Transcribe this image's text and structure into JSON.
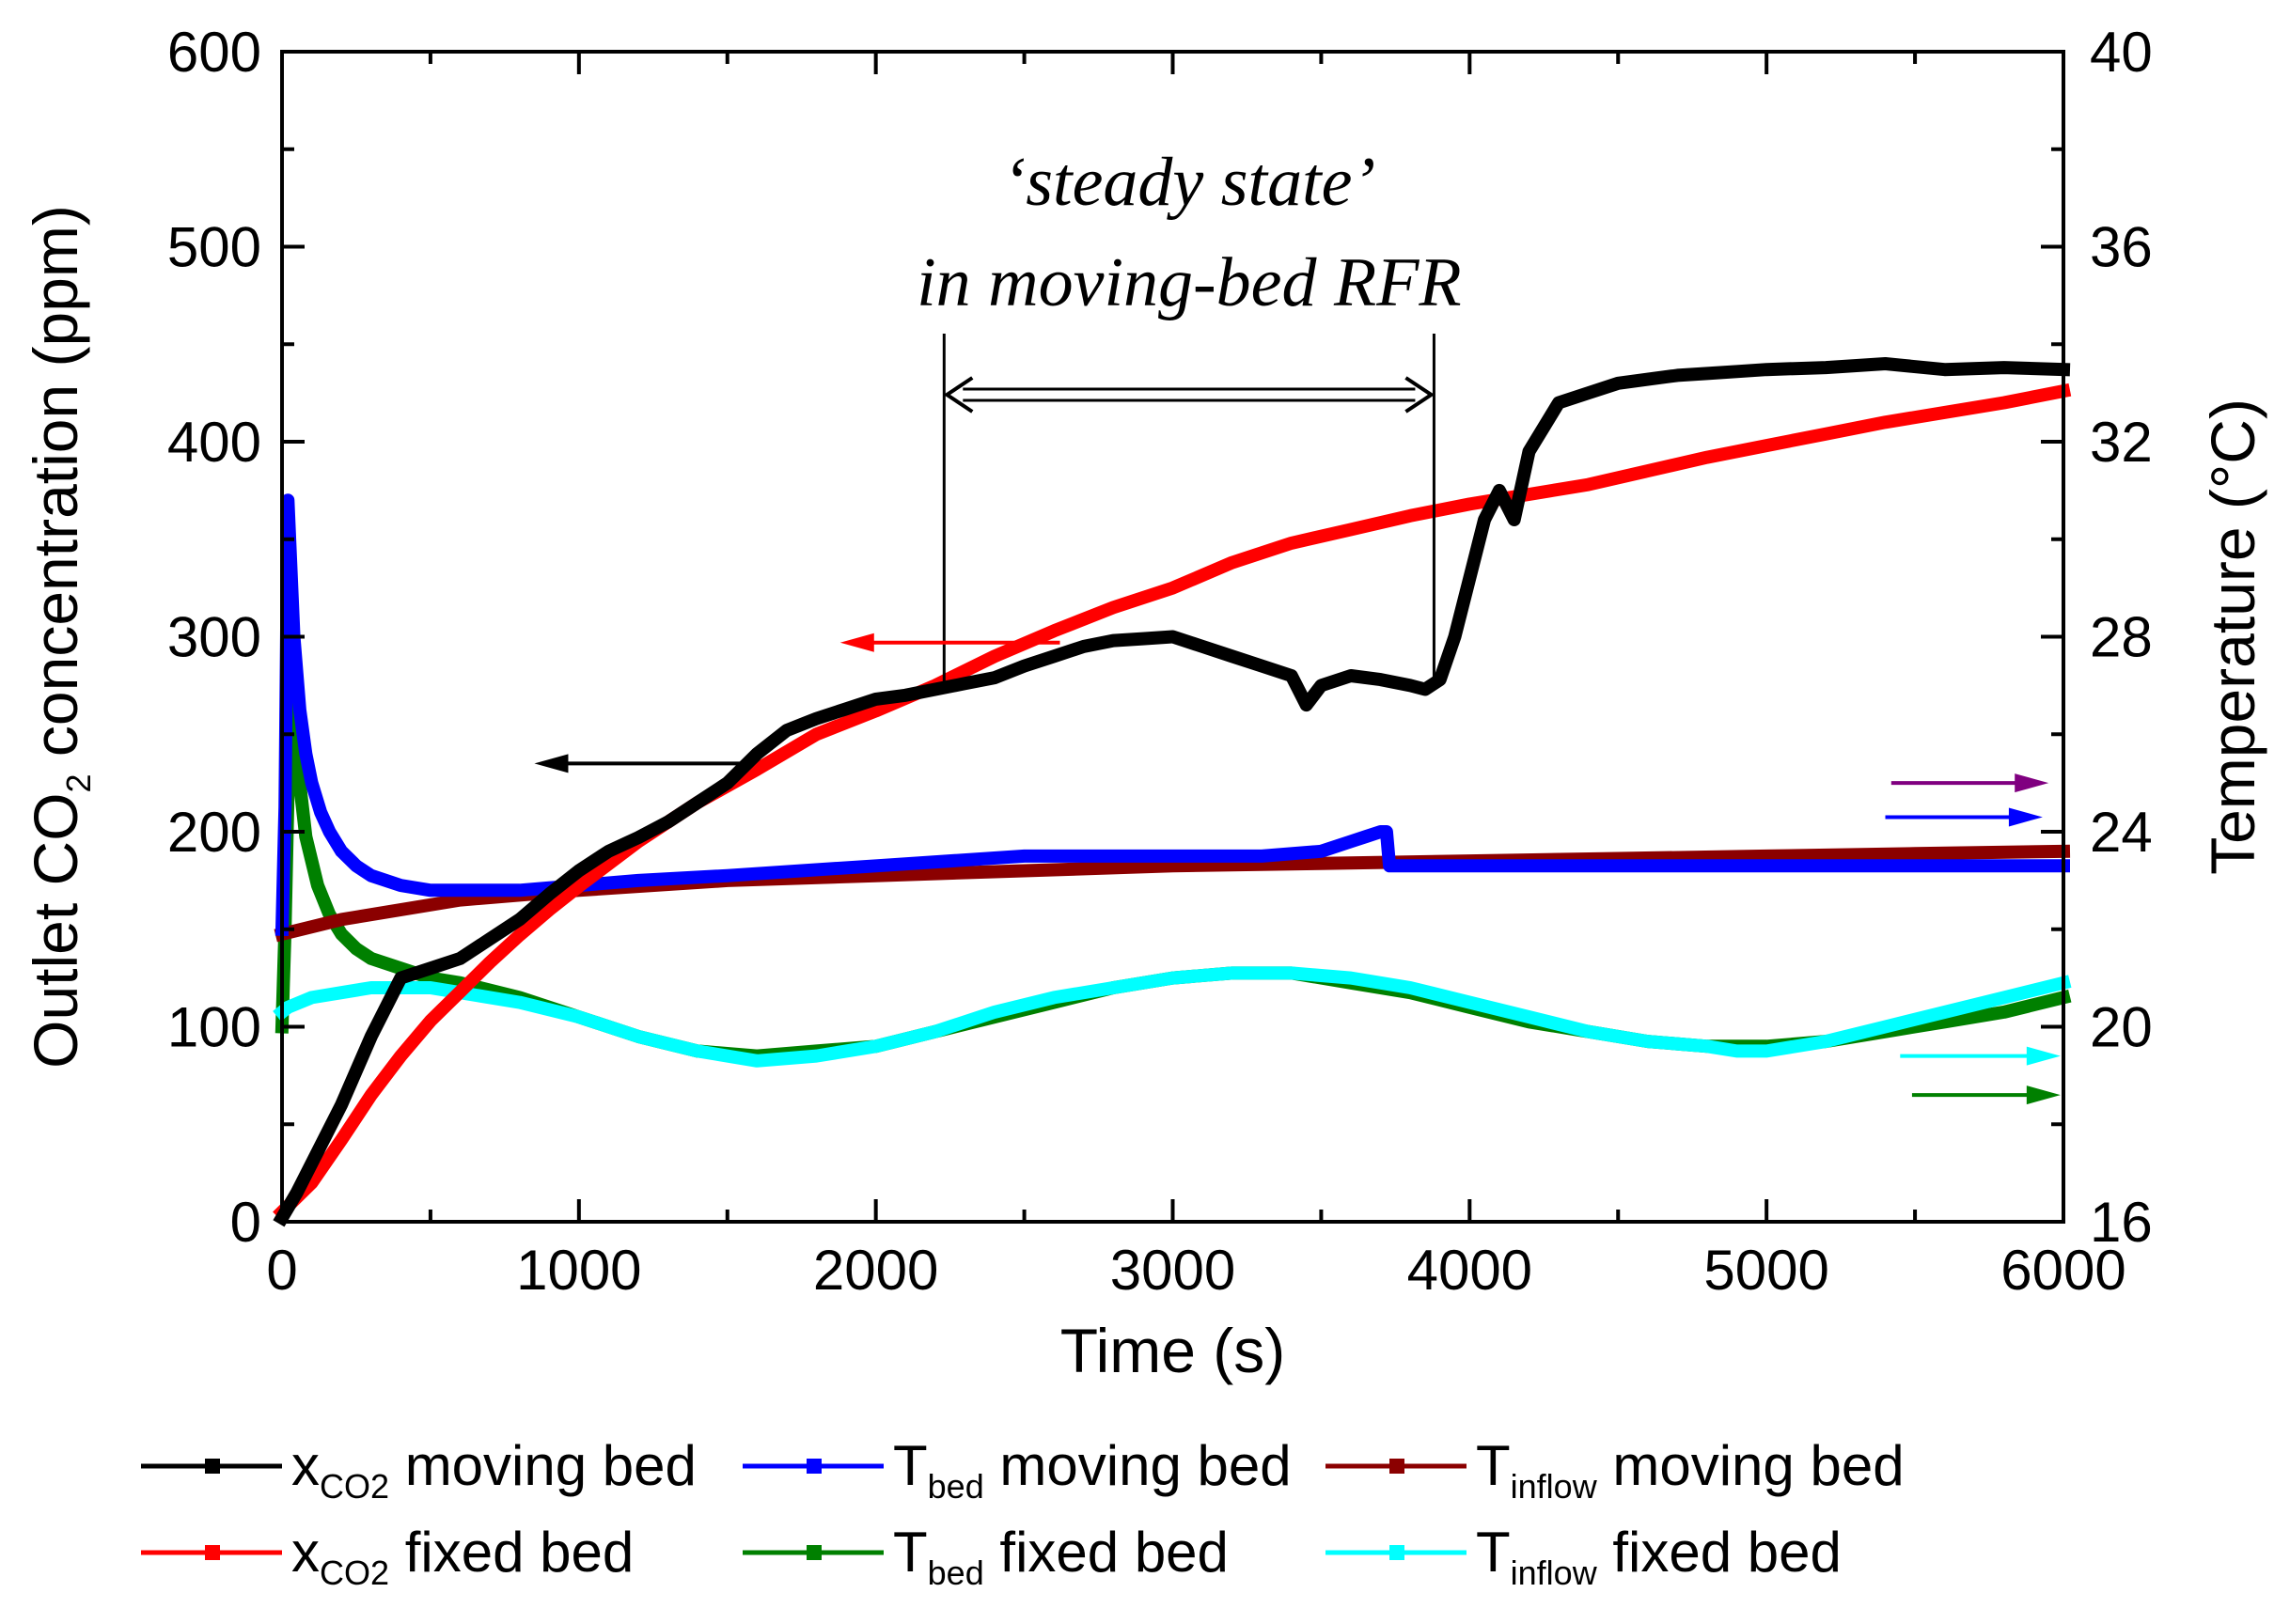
{
  "chart_data": {
    "type": "line",
    "title": "",
    "xlabel": "Time (s)",
    "ylabel_left": {
      "pre": "Outlet CO",
      "sub": "2",
      "post": " concentration (ppm)"
    },
    "ylabel_right": "Temperature (°C)",
    "xlim": [
      0,
      6000
    ],
    "ylim_left": [
      0,
      600
    ],
    "ylim_right": [
      16,
      40
    ],
    "x_ticks": [
      0,
      1000,
      2000,
      3000,
      4000,
      5000,
      6000
    ],
    "y_left_ticks": [
      0,
      100,
      200,
      300,
      400,
      500,
      600
    ],
    "y_right_ticks": [
      16,
      20,
      24,
      28,
      32,
      36,
      40
    ],
    "grid": false,
    "legend_placement": "bottom",
    "annotation": {
      "line1": "‘steady state’",
      "line2": "in moving-bed RFR",
      "x_start": 2230,
      "x_end": 3880
    },
    "axis_arrows": [
      {
        "series": "x_CO2 moving bed",
        "axis": "left",
        "x": [
          1550,
          850
        ],
        "y": 235,
        "color": "#000000"
      },
      {
        "series": "x_CO2 fixed bed",
        "axis": "left",
        "x": [
          2620,
          1880
        ],
        "y": 297,
        "color": "#ff0000"
      },
      {
        "series": "T_inflow moving bed",
        "axis": "right",
        "x": [
          5420,
          5950
        ],
        "y": 25.0,
        "color": "#800080"
      },
      {
        "series": "T_bed moving bed",
        "axis": "right",
        "x": [
          5400,
          5930
        ],
        "y": 24.3,
        "color": "#0000ff"
      },
      {
        "series": "T_inflow fixed bed",
        "axis": "right",
        "x": [
          5450,
          5990
        ],
        "y": 19.4,
        "color": "#00ffff"
      },
      {
        "series": "T_bed fixed bed",
        "axis": "right",
        "x": [
          5490,
          5990
        ],
        "y": 18.6,
        "color": "#008000"
      }
    ],
    "series": [
      {
        "name": "moving bed",
        "legend_main": "x",
        "legend_sub": "CO2",
        "axis": "left",
        "color": "#000000",
        "x": [
          0,
          50,
          100,
          200,
          300,
          400,
          500,
          600,
          700,
          800,
          900,
          1000,
          1100,
          1200,
          1300,
          1400,
          1500,
          1600,
          1700,
          1800,
          1900,
          2000,
          2100,
          2200,
          2300,
          2400,
          2500,
          2600,
          2700,
          2800,
          2900,
          3000,
          3100,
          3200,
          3300,
          3400,
          3450,
          3500,
          3600,
          3700,
          3800,
          3850,
          3900,
          3950,
          4000,
          4050,
          4100,
          4150,
          4200,
          4300,
          4400,
          4500,
          4600,
          4700,
          4800,
          4900,
          5000,
          5200,
          5400,
          5600,
          5800,
          6000
        ],
        "y": [
          2,
          15,
          30,
          60,
          95,
          125,
          130,
          135,
          145,
          155,
          168,
          180,
          190,
          197,
          205,
          215,
          225,
          240,
          252,
          258,
          263,
          268,
          270,
          273,
          276,
          279,
          285,
          290,
          295,
          298,
          299,
          300,
          295,
          290,
          285,
          280,
          265,
          275,
          280,
          278,
          275,
          273,
          278,
          300,
          330,
          360,
          375,
          360,
          395,
          420,
          425,
          430,
          432,
          434,
          435,
          436,
          437,
          438,
          440,
          437,
          438,
          437
        ]
      },
      {
        "name": "fixed bed",
        "legend_main": "x",
        "legend_sub": "CO2",
        "axis": "left",
        "color": "#ff0000",
        "x": [
          0,
          100,
          200,
          300,
          400,
          500,
          600,
          700,
          800,
          900,
          1000,
          1200,
          1400,
          1600,
          1800,
          2000,
          2200,
          2400,
          2600,
          2800,
          3000,
          3200,
          3400,
          3600,
          3800,
          4000,
          4200,
          4400,
          4600,
          4800,
          5000,
          5200,
          5400,
          5600,
          5800,
          6000
        ],
        "y": [
          5,
          20,
          42,
          65,
          85,
          103,
          118,
          133,
          147,
          160,
          172,
          195,
          215,
          232,
          250,
          262,
          275,
          290,
          303,
          315,
          325,
          338,
          348,
          355,
          362,
          368,
          373,
          378,
          385,
          392,
          398,
          404,
          410,
          415,
          420,
          426
        ]
      },
      {
        "name": "moving bed",
        "legend_main": "T",
        "legend_sub": "bed",
        "axis": "right",
        "color": "#0000ff",
        "x": [
          0,
          10,
          20,
          40,
          60,
          80,
          100,
          130,
          160,
          200,
          250,
          300,
          400,
          500,
          600,
          800,
          1000,
          1200,
          1500,
          2000,
          2500,
          3000,
          3300,
          3500,
          3600,
          3650,
          3700,
          3720,
          3730,
          3800,
          4000,
          4500,
          5000,
          5500,
          6000
        ],
        "y": [
          22.0,
          24.5,
          30.8,
          28.0,
          26.5,
          25.6,
          25.0,
          24.4,
          24.0,
          23.6,
          23.3,
          23.1,
          22.9,
          22.8,
          22.8,
          22.8,
          22.9,
          23.0,
          23.1,
          23.3,
          23.5,
          23.5,
          23.5,
          23.6,
          23.8,
          23.9,
          24.0,
          24.0,
          23.3,
          23.3,
          23.3,
          23.3,
          23.3,
          23.3,
          23.3
        ]
      },
      {
        "name": "moving bed",
        "legend_main": "T",
        "legend_sub": "inflow",
        "axis": "right",
        "color": "#8b0000",
        "x": [
          0,
          200,
          400,
          600,
          800,
          1000,
          1500,
          2000,
          2500,
          3000,
          3500,
          4000,
          4500,
          5000,
          5500,
          6000
        ],
        "y": [
          21.9,
          22.2,
          22.4,
          22.6,
          22.7,
          22.8,
          23.0,
          23.1,
          23.2,
          23.3,
          23.35,
          23.4,
          23.45,
          23.5,
          23.55,
          23.6
        ]
      },
      {
        "name": "fixed bed",
        "legend_main": "T",
        "legend_sub": "bed",
        "axis": "right",
        "color": "#008000",
        "x": [
          0,
          10,
          30,
          50,
          80,
          120,
          160,
          200,
          250,
          300,
          400,
          500,
          600,
          800,
          1000,
          1200,
          1400,
          1600,
          1800,
          2000,
          2200,
          2400,
          2600,
          2800,
          3000,
          3200,
          3400,
          3600,
          3800,
          4000,
          4200,
          4400,
          4600,
          4800,
          5000,
          5200,
          5400,
          5600,
          5800,
          6000
        ],
        "y": [
          20.0,
          22.0,
          27.6,
          25.5,
          23.9,
          22.9,
          22.3,
          21.9,
          21.6,
          21.4,
          21.2,
          21.0,
          20.9,
          20.6,
          20.2,
          19.8,
          19.5,
          19.4,
          19.5,
          19.6,
          19.9,
          20.2,
          20.5,
          20.8,
          21.0,
          21.1,
          21.1,
          20.9,
          20.7,
          20.4,
          20.1,
          19.9,
          19.7,
          19.6,
          19.6,
          19.7,
          19.9,
          20.1,
          20.3,
          20.6
        ]
      },
      {
        "name": "fixed bed",
        "legend_main": "T",
        "legend_sub": "inflow",
        "axis": "right",
        "color": "#00ffff",
        "x": [
          0,
          20,
          100,
          200,
          300,
          400,
          500,
          600,
          800,
          1000,
          1200,
          1400,
          1600,
          1800,
          2000,
          2200,
          2400,
          2600,
          2800,
          3000,
          3200,
          3400,
          3600,
          3800,
          4000,
          4200,
          4400,
          4600,
          4800,
          4900,
          5000,
          5200,
          5400,
          5600,
          5800,
          6000
        ],
        "y": [
          20.3,
          20.4,
          20.6,
          20.7,
          20.8,
          20.8,
          20.8,
          20.7,
          20.5,
          20.2,
          19.8,
          19.5,
          19.3,
          19.4,
          19.6,
          19.9,
          20.3,
          20.6,
          20.8,
          21.0,
          21.1,
          21.1,
          21.0,
          20.8,
          20.5,
          20.2,
          19.9,
          19.7,
          19.6,
          19.5,
          19.5,
          19.7,
          20.0,
          20.3,
          20.6,
          20.9
        ]
      }
    ]
  }
}
